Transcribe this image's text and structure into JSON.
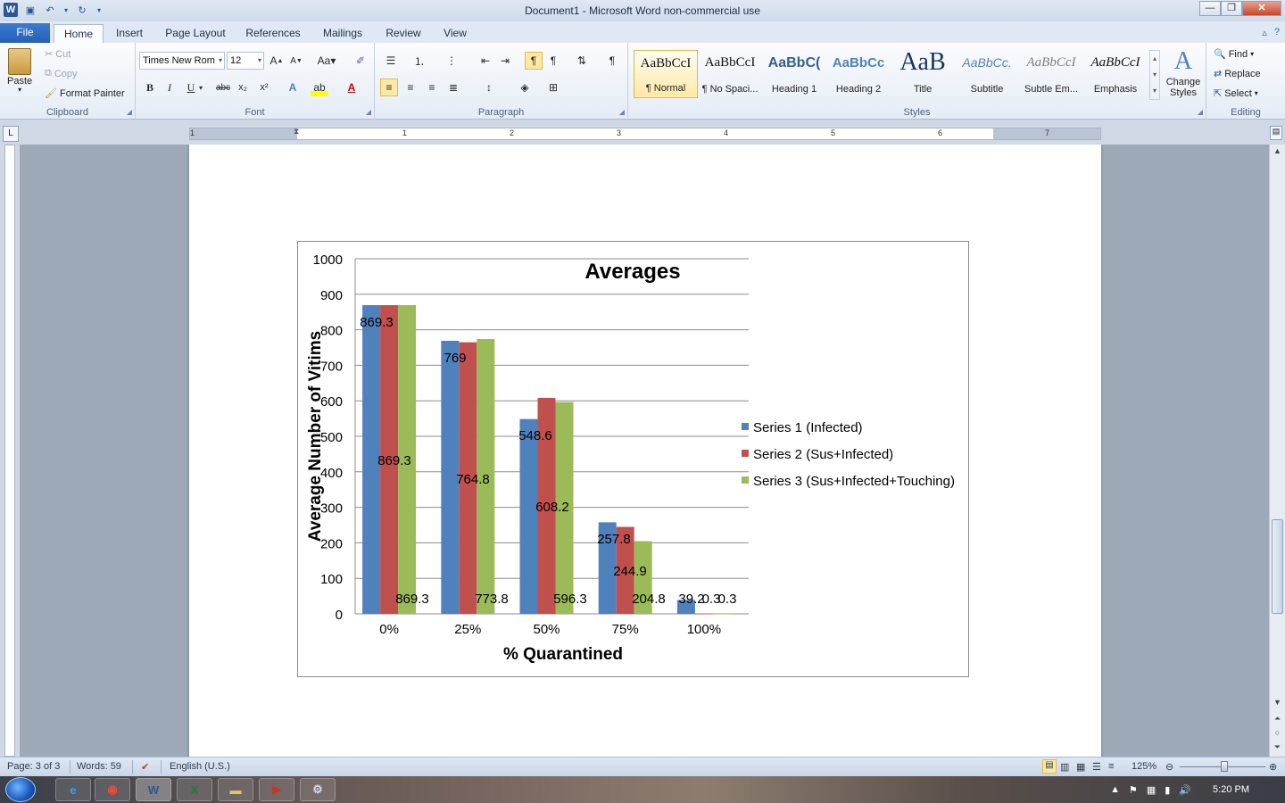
{
  "window": {
    "title": "Document1  -  Microsoft Word non-commercial use",
    "minimize": "—",
    "restore": "❐",
    "close": "✕"
  },
  "tabs": [
    "File",
    "Home",
    "Insert",
    "Page Layout",
    "References",
    "Mailings",
    "Review",
    "View"
  ],
  "ribbon": {
    "clipboard": {
      "label": "Clipboard",
      "paste": "Paste",
      "cut": "Cut",
      "copy": "Copy",
      "format_painter": "Format Painter"
    },
    "font": {
      "label": "Font",
      "name": "Times New Rom",
      "size": "12"
    },
    "paragraph": {
      "label": "Paragraph"
    },
    "styles": {
      "label": "Styles",
      "items": [
        {
          "sample": "AaBbCcI",
          "name": "¶ Normal"
        },
        {
          "sample": "AaBbCcI",
          "name": "¶ No Spaci..."
        },
        {
          "sample": "AaBbC(",
          "name": "Heading 1"
        },
        {
          "sample": "AaBbCc",
          "name": "Heading 2"
        },
        {
          "sample": "AaB",
          "name": "Title"
        },
        {
          "sample": "AaBbCc.",
          "name": "Subtitle"
        },
        {
          "sample": "AaBbCcI",
          "name": "Subtle Em..."
        },
        {
          "sample": "AaBbCcI",
          "name": "Emphasis"
        }
      ],
      "change_styles": "Change Styles"
    },
    "editing": {
      "label": "Editing",
      "find": "Find",
      "replace": "Replace",
      "select": "Select"
    }
  },
  "ruler": {
    "numbers": [
      "1",
      "1",
      "2",
      "3",
      "4",
      "5",
      "6",
      "7"
    ]
  },
  "chart_data": {
    "type": "bar",
    "title": "Averages",
    "xlabel": "% Quarantined",
    "ylabel": "Average Number of Vitims",
    "categories": [
      "0%",
      "25%",
      "50%",
      "75%",
      "100%"
    ],
    "ylim": [
      0,
      1000
    ],
    "yticks": [
      0,
      100,
      200,
      300,
      400,
      500,
      600,
      700,
      800,
      900,
      1000
    ],
    "grid": true,
    "legend": "right",
    "series": [
      {
        "name": "Series 1 (Infected)",
        "color": "#4f81bd",
        "values": [
          869.3,
          769,
          548.6,
          257.8,
          39.2
        ],
        "labels": [
          "869.3",
          "769",
          "548.6",
          "257.8",
          "39.2"
        ]
      },
      {
        "name": "Series 2 (Sus+Infected)",
        "color": "#c0504d",
        "values": [
          869.3,
          764.8,
          608.2,
          244.9,
          0.3
        ],
        "labels": [
          "869.3",
          "764.8",
          "608.2",
          "244.9",
          "0.3"
        ]
      },
      {
        "name": "Series 3 (Sus+Infected+Touching)",
        "color": "#9bbb59",
        "values": [
          869.3,
          773.8,
          596.3,
          204.8,
          0.3
        ],
        "labels": [
          "869.3",
          "773.8",
          "596.3",
          "204.8",
          "0.3"
        ]
      }
    ]
  },
  "status": {
    "page": "Page: 3 of 3",
    "words": "Words: 59",
    "language": "English (U.S.)",
    "zoom": "125%"
  },
  "taskbar": {
    "time": "5:20 PM"
  }
}
